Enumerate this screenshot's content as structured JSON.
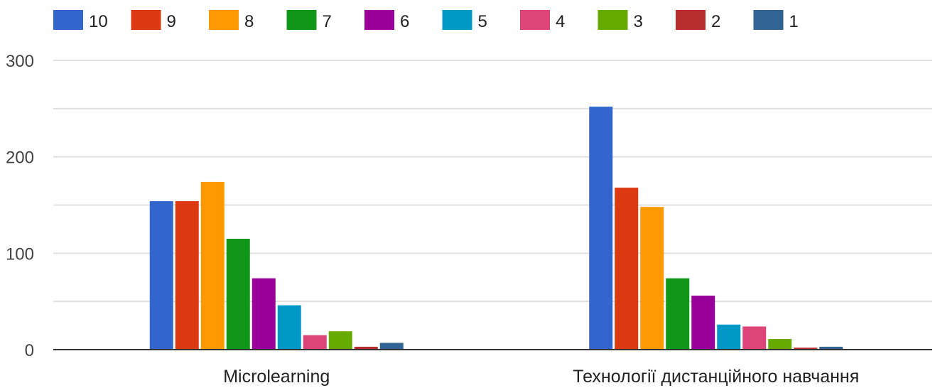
{
  "chart_data": {
    "type": "bar",
    "title": "",
    "xlabel": "",
    "ylabel": "",
    "categories": [
      "Microlearning",
      "Технології дистанційного навчання"
    ],
    "ylim": [
      0,
      300
    ],
    "yticks": [
      0,
      100,
      200,
      300
    ],
    "grid": true,
    "legend_position": "top",
    "series": [
      {
        "name": "10",
        "color": "#3366cc",
        "values": [
          154,
          252
        ]
      },
      {
        "name": "9",
        "color": "#dc3912",
        "values": [
          154,
          168
        ]
      },
      {
        "name": "8",
        "color": "#ff9900",
        "values": [
          174,
          148
        ]
      },
      {
        "name": "7",
        "color": "#109618",
        "values": [
          115,
          74
        ]
      },
      {
        "name": "6",
        "color": "#990099",
        "values": [
          74,
          56
        ]
      },
      {
        "name": "5",
        "color": "#0099c6",
        "values": [
          46,
          26
        ]
      },
      {
        "name": "4",
        "color": "#dd4477",
        "values": [
          15,
          24
        ]
      },
      {
        "name": "3",
        "color": "#66aa00",
        "values": [
          19,
          11
        ]
      },
      {
        "name": "2",
        "color": "#b82e2e",
        "values": [
          3,
          2
        ]
      },
      {
        "name": "1",
        "color": "#316395",
        "values": [
          7,
          3
        ]
      }
    ]
  }
}
